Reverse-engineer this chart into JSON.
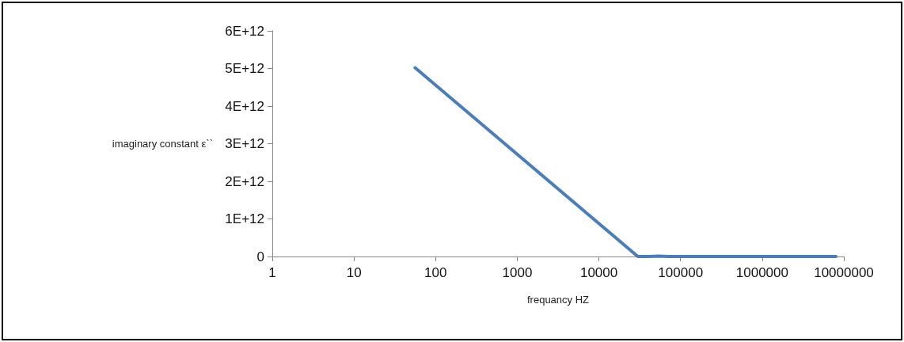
{
  "chart_data": {
    "type": "line",
    "xlabel": "frequancy HZ",
    "ylabel": "imaginary constant ε``",
    "x": [
      56,
      30000,
      40000,
      55000,
      70000,
      100000,
      1000000,
      8000000
    ],
    "series": [
      {
        "color": "#4a7ebb",
        "values": [
          5020000000000.0,
          0,
          0,
          10000000000.0,
          0,
          0,
          0,
          0
        ]
      }
    ],
    "log": "x",
    "xlim": [
      1,
      10000000
    ],
    "xticks": [
      1,
      10,
      100,
      1000,
      10000,
      100000,
      1000000,
      10000000
    ],
    "ylim": [
      0,
      6000000000000.0
    ],
    "yticks": [
      0,
      {
        "value": 1000000000000.0,
        "label": "1E+12"
      },
      {
        "value": 2000000000000.0,
        "label": "2E+12"
      },
      {
        "value": 3000000000000.0,
        "label": "3E+12"
      },
      {
        "value": 4000000000000.0,
        "label": "4E+12"
      },
      {
        "value": 5000000000000.0,
        "label": "5E+12"
      },
      {
        "value": 6000000000000.0,
        "label": "6E+12"
      }
    ],
    "grid": false,
    "marker": "none",
    "line_style": "solid"
  }
}
